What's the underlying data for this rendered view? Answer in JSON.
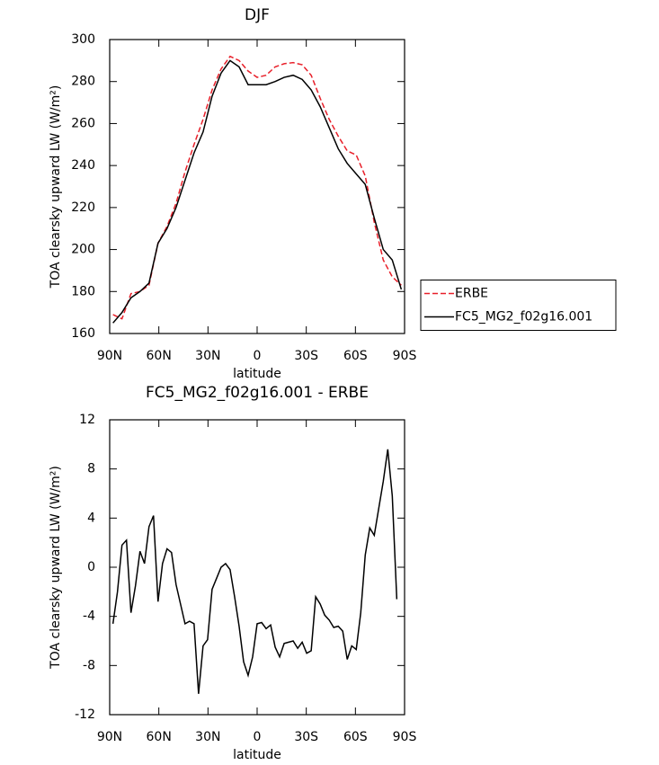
{
  "chart_data": [
    {
      "type": "line",
      "title": "DJF",
      "xlabel": "latitude",
      "ylabel": "TOA clearsky upward LW (W/m²)",
      "x": [
        88,
        82.5,
        77,
        71.5,
        66,
        60.5,
        55,
        49.5,
        44,
        38.5,
        33,
        27.5,
        22,
        16.5,
        11,
        5.5,
        0,
        -5.5,
        -11,
        -16.5,
        -22,
        -27.5,
        -33,
        -38.5,
        -44,
        -49.5,
        -55,
        -60.5,
        -66,
        -71.5,
        -77,
        -82.5,
        -88
      ],
      "series": [
        {
          "name": "ERBE",
          "color": "#e8202a",
          "linestyle": "dashed",
          "values": [
            169,
            167,
            179,
            180,
            183,
            203,
            211,
            222,
            237,
            250,
            262,
            276,
            286,
            292,
            290,
            285,
            282,
            283,
            287,
            288.5,
            289,
            288,
            283,
            272,
            262,
            254,
            247,
            245,
            235,
            213,
            195,
            187,
            183
          ]
        },
        {
          "name": "FC5_MG2_f02g16.001",
          "color": "#000000",
          "linestyle": "solid",
          "values": [
            165,
            170,
            177,
            180,
            184,
            203,
            210,
            220,
            233,
            246,
            256,
            273,
            284,
            290,
            287,
            278.5,
            278.5,
            278.5,
            280,
            282,
            283,
            281,
            276,
            268,
            258,
            248,
            241,
            236,
            231,
            215,
            200,
            195,
            181
          ]
        }
      ],
      "xlim": [
        90,
        -90
      ],
      "xticks": [
        {
          "value": 90,
          "label": "90N"
        },
        {
          "value": 60,
          "label": "60N"
        },
        {
          "value": 30,
          "label": "30N"
        },
        0,
        {
          "value": -30,
          "label": "30S"
        },
        {
          "value": -60,
          "label": "60S"
        },
        {
          "value": -90,
          "label": "90S"
        }
      ],
      "ylim": [
        160,
        300
      ],
      "yticks": [
        160,
        180,
        200,
        220,
        240,
        260,
        280,
        300
      ],
      "legend": "right"
    },
    {
      "type": "line",
      "title": "FC5_MG2_f02g16.001 - ERBE",
      "xlabel": "latitude",
      "ylabel": "TOA clearsky upward LW (W/m²)",
      "x": [
        88,
        85.25,
        82.5,
        79.75,
        77,
        74.25,
        71.5,
        68.75,
        66,
        63.25,
        60.5,
        57.75,
        55,
        52.25,
        49.5,
        46.75,
        44,
        41.25,
        38.5,
        35.75,
        33,
        30.25,
        27.5,
        24.75,
        22,
        19.25,
        16.5,
        13.75,
        11,
        8.25,
        5.5,
        2.75,
        0,
        -2.75,
        -5.5,
        -8.25,
        -11,
        -13.75,
        -16.5,
        -19.25,
        -22,
        -24.75,
        -27.5,
        -30.25,
        -33,
        -35.75,
        -38.5,
        -41.25,
        -44,
        -46.75,
        -49.5,
        -52.25,
        -55,
        -57.75,
        -60.5,
        -63.25,
        -66,
        -68.75,
        -71.5,
        -74.25,
        -77,
        -79.75,
        -82.5,
        -85.25
      ],
      "series": [
        {
          "color": "#000000",
          "linestyle": "solid",
          "values": [
            -4.6,
            -2,
            1.8,
            2.2,
            -3.7,
            -1.5,
            1.3,
            0.3,
            3.3,
            4.2,
            -2.8,
            0.3,
            1.5,
            1.2,
            -1.4,
            -3,
            -4.6,
            -4.4,
            -4.6,
            -10.3,
            -6.4,
            -5.9,
            -1.8,
            -0.9,
            0,
            0.3,
            -0.2,
            -2.4,
            -4.8,
            -7.7,
            -8.8,
            -7.3,
            -4.6,
            -4.5,
            -5,
            -4.7,
            -6.5,
            -7.3,
            -6.2,
            -6.1,
            -6,
            -6.6,
            -6.1,
            -7,
            -6.8,
            -2.4,
            -3,
            -3.9,
            -4.3,
            -4.9,
            -4.8,
            -5.2,
            -7.5,
            -6.4,
            -6.7,
            -3.7,
            1,
            3.2,
            2.6,
            4.8,
            7,
            9.6,
            5.8,
            -2.6
          ]
        }
      ],
      "xlim": [
        90,
        -90
      ],
      "xticks": [
        {
          "value": 90,
          "label": "90N"
        },
        {
          "value": 60,
          "label": "60N"
        },
        {
          "value": 30,
          "label": "30N"
        },
        0,
        {
          "value": -30,
          "label": "30S"
        },
        {
          "value": -60,
          "label": "60S"
        },
        {
          "value": -90,
          "label": "90S"
        }
      ],
      "ylim": [
        -12,
        12
      ],
      "yticks": [
        -12,
        -8,
        -4,
        0,
        4,
        8,
        12
      ]
    }
  ]
}
